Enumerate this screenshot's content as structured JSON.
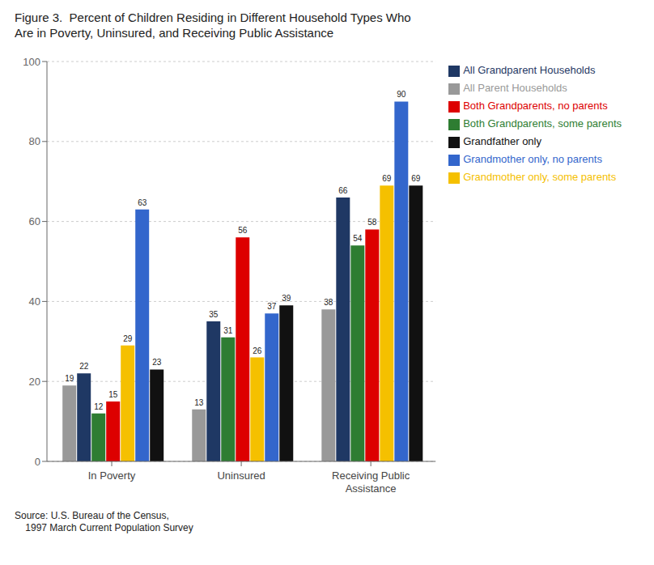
{
  "chart_data": {
    "type": "bar",
    "title": "Figure 3.  Percent of Children Residing in Different Household Types Who\nAre in Poverty, Uninsured, and Receiving Public Assistance",
    "annotations": [
      "Source: U.S. Bureau of the Census,\n    1997 March Current Population Survey"
    ],
    "categories": [
      "In Poverty",
      "Uninsured",
      "Receiving Public\nAssistance"
    ],
    "series": [
      {
        "name": "All Parent Households",
        "color": "#999999",
        "values": [
          19,
          13,
          38
        ]
      },
      {
        "name": "All Grandparent Households",
        "color": "#1f3864",
        "values": [
          22,
          35,
          66
        ]
      },
      {
        "name": "Both Grandparents, some parents",
        "color": "#2e7d32",
        "values": [
          12,
          31,
          54
        ]
      },
      {
        "name": "Both Grandparents, no parents",
        "color": "#dd0000",
        "values": [
          15,
          56,
          58
        ]
      },
      {
        "name": "Grandmother only, some parents",
        "color": "#f5c000",
        "values": [
          29,
          26,
          69
        ]
      },
      {
        "name": "Grandmother only, no parents",
        "color": "#3366cc",
        "values": [
          63,
          37,
          90
        ]
      },
      {
        "name": "Grandfather only",
        "color": "#111111",
        "values": [
          23,
          39,
          69
        ]
      }
    ],
    "ylim": [
      0,
      100
    ],
    "yticks": [
      0,
      20,
      40,
      60,
      80,
      100
    ],
    "grid": true,
    "legend": "right",
    "data_labels": true
  }
}
